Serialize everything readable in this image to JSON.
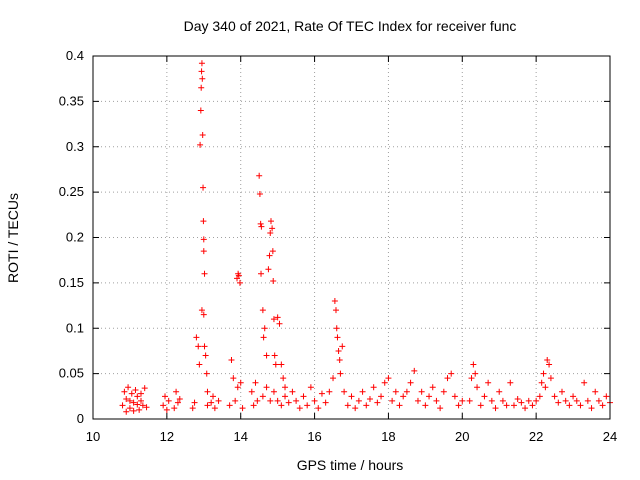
{
  "chart_data": {
    "type": "scatter",
    "title": "Day 340 of 2021, Rate Of TEC Index for receiver func",
    "xlabel": "GPS time / hours",
    "ylabel": "ROTI / TECUs",
    "xlim": [
      10,
      24
    ],
    "ylim": [
      0,
      0.4
    ],
    "grid": true,
    "marker": "plus",
    "color": "#ff0000",
    "x_ticks": [
      10,
      12,
      14,
      16,
      18,
      20,
      22,
      24
    ],
    "x_tick_labels": [
      "10",
      "12",
      "14",
      "16",
      "18",
      "20",
      "22",
      "24"
    ],
    "y_ticks": [
      0,
      0.05,
      0.1,
      0.15,
      0.2,
      0.25,
      0.3,
      0.35,
      0.4
    ],
    "y_tick_labels": [
      "0",
      "0.05",
      "0.1",
      "0.15",
      "0.2",
      "0.25",
      "0.3",
      "0.35",
      "0.4"
    ],
    "series": [
      {
        "name": "ROTI",
        "points": [
          [
            10.8,
            0.015
          ],
          [
            10.85,
            0.03
          ],
          [
            10.9,
            0.022
          ],
          [
            10.95,
            0.035
          ],
          [
            11.0,
            0.012
          ],
          [
            11.05,
            0.028
          ],
          [
            11.1,
            0.018
          ],
          [
            11.15,
            0.032
          ],
          [
            11.2,
            0.025
          ],
          [
            11.25,
            0.01
          ],
          [
            11.3,
            0.02
          ],
          [
            11.35,
            0.015
          ],
          [
            11.4,
            0.034
          ],
          [
            11.45,
            0.013
          ],
          [
            10.9,
            0.008
          ],
          [
            11.0,
            0.02
          ],
          [
            11.1,
            0.009
          ],
          [
            11.2,
            0.016
          ],
          [
            11.3,
            0.028
          ],
          [
            11.9,
            0.015
          ],
          [
            11.95,
            0.025
          ],
          [
            12.0,
            0.01
          ],
          [
            12.05,
            0.02
          ],
          [
            12.2,
            0.012
          ],
          [
            12.25,
            0.03
          ],
          [
            12.3,
            0.018
          ],
          [
            12.35,
            0.022
          ],
          [
            12.7,
            0.012
          ],
          [
            12.75,
            0.018
          ],
          [
            12.8,
            0.09
          ],
          [
            12.85,
            0.08
          ],
          [
            12.88,
            0.06
          ],
          [
            12.9,
            0.302
          ],
          [
            12.92,
            0.34
          ],
          [
            12.93,
            0.365
          ],
          [
            12.94,
            0.383
          ],
          [
            12.95,
            0.392
          ],
          [
            12.96,
            0.375
          ],
          [
            12.97,
            0.313
          ],
          [
            12.98,
            0.255
          ],
          [
            12.99,
            0.218
          ],
          [
            13.0,
            0.198
          ],
          [
            13.0,
            0.185
          ],
          [
            13.02,
            0.16
          ],
          [
            12.95,
            0.12
          ],
          [
            13.0,
            0.115
          ],
          [
            13.02,
            0.08
          ],
          [
            13.05,
            0.07
          ],
          [
            13.08,
            0.05
          ],
          [
            13.1,
            0.015
          ],
          [
            13.2,
            0.018
          ],
          [
            13.3,
            0.012
          ],
          [
            13.4,
            0.02
          ],
          [
            13.1,
            0.03
          ],
          [
            13.25,
            0.025
          ],
          [
            13.7,
            0.015
          ],
          [
            13.75,
            0.065
          ],
          [
            13.8,
            0.045
          ],
          [
            13.85,
            0.02
          ],
          [
            13.9,
            0.155
          ],
          [
            13.93,
            0.16
          ],
          [
            13.95,
            0.158
          ],
          [
            13.98,
            0.15
          ],
          [
            14.0,
            0.04
          ],
          [
            14.05,
            0.012
          ],
          [
            13.92,
            0.035
          ],
          [
            14.3,
            0.03
          ],
          [
            14.35,
            0.015
          ],
          [
            14.4,
            0.04
          ],
          [
            14.45,
            0.02
          ],
          [
            14.5,
            0.268
          ],
          [
            14.52,
            0.248
          ],
          [
            14.54,
            0.215
          ],
          [
            14.56,
            0.212
          ],
          [
            14.55,
            0.16
          ],
          [
            14.6,
            0.12
          ],
          [
            14.62,
            0.09
          ],
          [
            14.65,
            0.1
          ],
          [
            14.7,
            0.07
          ],
          [
            14.75,
            0.165
          ],
          [
            14.78,
            0.18
          ],
          [
            14.8,
            0.205
          ],
          [
            14.82,
            0.218
          ],
          [
            14.85,
            0.21
          ],
          [
            14.87,
            0.185
          ],
          [
            14.88,
            0.152
          ],
          [
            14.9,
            0.11
          ],
          [
            14.92,
            0.07
          ],
          [
            14.95,
            0.06
          ],
          [
            15.0,
            0.112
          ],
          [
            15.05,
            0.105
          ],
          [
            15.1,
            0.06
          ],
          [
            15.15,
            0.045
          ],
          [
            15.2,
            0.035
          ],
          [
            14.6,
            0.025
          ],
          [
            14.7,
            0.035
          ],
          [
            14.8,
            0.02
          ],
          [
            14.9,
            0.03
          ],
          [
            15.0,
            0.02
          ],
          [
            15.1,
            0.015
          ],
          [
            15.2,
            0.025
          ],
          [
            15.3,
            0.018
          ],
          [
            15.4,
            0.03
          ],
          [
            15.5,
            0.02
          ],
          [
            15.6,
            0.012
          ],
          [
            15.7,
            0.025
          ],
          [
            15.8,
            0.015
          ],
          [
            15.9,
            0.035
          ],
          [
            16.0,
            0.02
          ],
          [
            16.1,
            0.012
          ],
          [
            16.2,
            0.028
          ],
          [
            16.3,
            0.018
          ],
          [
            16.4,
            0.03
          ],
          [
            16.5,
            0.045
          ],
          [
            16.55,
            0.13
          ],
          [
            16.58,
            0.12
          ],
          [
            16.6,
            0.1
          ],
          [
            16.62,
            0.09
          ],
          [
            16.65,
            0.075
          ],
          [
            16.68,
            0.065
          ],
          [
            16.7,
            0.05
          ],
          [
            16.75,
            0.08
          ],
          [
            16.8,
            0.03
          ],
          [
            16.9,
            0.015
          ],
          [
            17.0,
            0.025
          ],
          [
            17.1,
            0.012
          ],
          [
            17.2,
            0.02
          ],
          [
            17.3,
            0.03
          ],
          [
            17.4,
            0.015
          ],
          [
            17.5,
            0.022
          ],
          [
            17.6,
            0.035
          ],
          [
            17.7,
            0.018
          ],
          [
            17.8,
            0.025
          ],
          [
            17.9,
            0.04
          ],
          [
            18.0,
            0.045
          ],
          [
            18.1,
            0.02
          ],
          [
            18.2,
            0.03
          ],
          [
            18.3,
            0.015
          ],
          [
            18.4,
            0.025
          ],
          [
            18.5,
            0.03
          ],
          [
            18.6,
            0.04
          ],
          [
            18.7,
            0.053
          ],
          [
            18.8,
            0.02
          ],
          [
            18.9,
            0.03
          ],
          [
            19.0,
            0.015
          ],
          [
            19.1,
            0.025
          ],
          [
            19.2,
            0.035
          ],
          [
            19.3,
            0.02
          ],
          [
            19.4,
            0.012
          ],
          [
            19.5,
            0.03
          ],
          [
            19.6,
            0.045
          ],
          [
            19.7,
            0.05
          ],
          [
            19.8,
            0.025
          ],
          [
            19.9,
            0.015
          ],
          [
            20.0,
            0.02
          ],
          [
            20.2,
            0.02
          ],
          [
            20.25,
            0.045
          ],
          [
            20.3,
            0.06
          ],
          [
            20.35,
            0.05
          ],
          [
            20.4,
            0.035
          ],
          [
            20.5,
            0.015
          ],
          [
            20.6,
            0.025
          ],
          [
            20.7,
            0.04
          ],
          [
            20.8,
            0.02
          ],
          [
            20.9,
            0.012
          ],
          [
            21.0,
            0.03
          ],
          [
            21.1,
            0.02
          ],
          [
            21.2,
            0.015
          ],
          [
            21.3,
            0.04
          ],
          [
            21.4,
            0.015
          ],
          [
            21.5,
            0.022
          ],
          [
            21.6,
            0.018
          ],
          [
            21.7,
            0.012
          ],
          [
            21.8,
            0.02
          ],
          [
            21.9,
            0.015
          ],
          [
            22.0,
            0.02
          ],
          [
            22.1,
            0.025
          ],
          [
            22.15,
            0.04
          ],
          [
            22.2,
            0.05
          ],
          [
            22.25,
            0.035
          ],
          [
            22.3,
            0.065
          ],
          [
            22.35,
            0.06
          ],
          [
            22.4,
            0.045
          ],
          [
            22.5,
            0.025
          ],
          [
            22.6,
            0.018
          ],
          [
            22.7,
            0.03
          ],
          [
            22.8,
            0.02
          ],
          [
            22.9,
            0.015
          ],
          [
            23.0,
            0.025
          ],
          [
            23.1,
            0.02
          ],
          [
            23.2,
            0.015
          ],
          [
            23.3,
            0.04
          ],
          [
            23.4,
            0.02
          ],
          [
            23.5,
            0.012
          ],
          [
            23.6,
            0.03
          ],
          [
            23.7,
            0.02
          ],
          [
            23.8,
            0.015
          ],
          [
            23.9,
            0.025
          ],
          [
            24.0,
            0.018
          ]
        ]
      }
    ]
  }
}
